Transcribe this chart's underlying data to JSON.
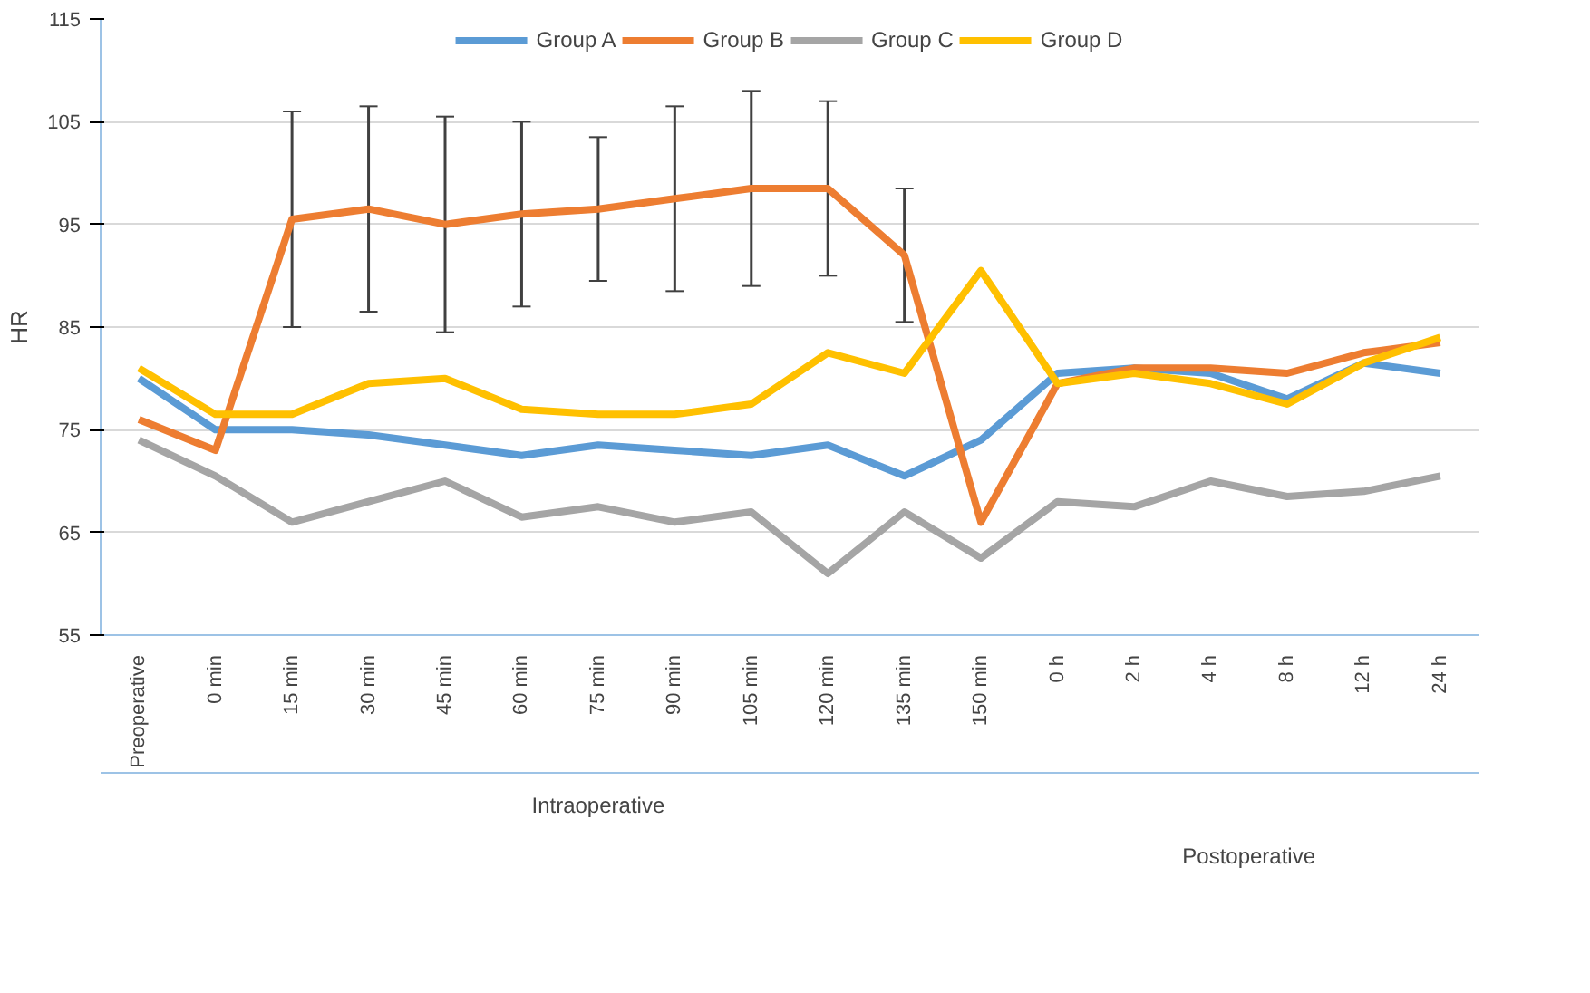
{
  "chart_data": {
    "type": "line",
    "ylabel": "HR",
    "categories": [
      "Preoperative",
      "0 min",
      "15 min",
      "30 min",
      "45 min",
      "60 min",
      "75 min",
      "90 min",
      "105 min",
      "120 min",
      "135 min",
      "150 min",
      "0 h",
      "2 h",
      "4 h",
      "8 h",
      "12 h",
      "24 h"
    ],
    "series": [
      {
        "name": "Group A",
        "color": "#5b9bd5",
        "values": [
          80,
          75,
          75,
          74.5,
          73.5,
          72.5,
          73.5,
          73,
          72.5,
          73.5,
          70.5,
          74,
          80.5,
          81,
          80.5,
          78,
          81.5,
          80.5
        ]
      },
      {
        "name": "Group B",
        "color": "#ed7d31",
        "values": [
          76,
          73,
          95.5,
          96.5,
          95,
          96,
          96.5,
          97.5,
          98.5,
          98.5,
          92,
          66,
          79.5,
          81,
          81,
          80.5,
          82.5,
          83.5
        ],
        "errors": [
          null,
          null,
          10.5,
          10,
          10.5,
          9,
          7,
          9,
          9.5,
          8.5,
          6.5,
          null,
          null,
          null,
          null,
          null,
          null,
          null
        ]
      },
      {
        "name": "Group C",
        "color": "#a5a5a5",
        "values": [
          74,
          70.5,
          66,
          68,
          70,
          66.5,
          67.5,
          66,
          67,
          61,
          67,
          62.5,
          68,
          67.5,
          70,
          68.5,
          69,
          70.5
        ]
      },
      {
        "name": "Group D",
        "color": "#ffc000",
        "values": [
          81,
          76.5,
          76.5,
          79.5,
          80,
          77,
          76.5,
          76.5,
          77.5,
          82.5,
          80.5,
          90.5,
          79.5,
          80.5,
          79.5,
          77.5,
          81.5,
          84
        ]
      }
    ],
    "ylim": [
      55,
      115
    ],
    "yticks": [
      55,
      65,
      75,
      85,
      95,
      105,
      115
    ],
    "grid": "y",
    "legend": "top",
    "marker": "none",
    "line_style": "solid",
    "annotations": [
      "Intraoperative",
      "Postoperative"
    ]
  }
}
